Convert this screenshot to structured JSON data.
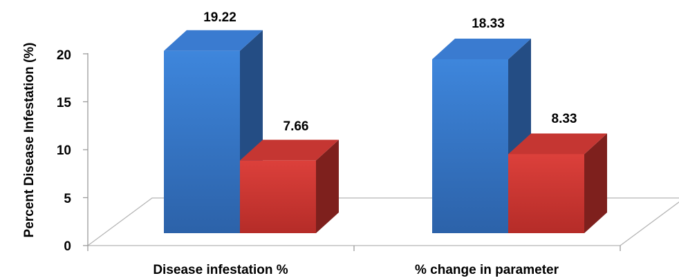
{
  "chart_data": {
    "type": "bar",
    "style": "3d-clustered",
    "categories": [
      "Disease infestation %",
      "% change in parameter"
    ],
    "series": [
      {
        "values": [
          19.22,
          18.33
        ],
        "color": "#3b7fd4"
      },
      {
        "values": [
          7.66,
          8.33
        ],
        "color": "#d63b36"
      }
    ],
    "data_labels": [
      [
        "19.22",
        "18.33"
      ],
      [
        "7.66",
        "8.33"
      ]
    ],
    "ylabel": "Percent Disease Infestation (%)",
    "yticks": [
      "0",
      "5",
      "10",
      "15",
      "20"
    ],
    "ylim": [
      0,
      20
    ],
    "grid": false,
    "legend": "none"
  }
}
